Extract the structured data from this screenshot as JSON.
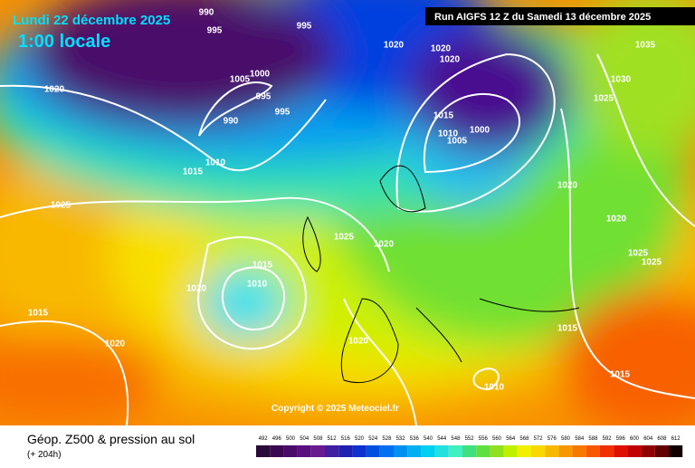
{
  "header": {
    "date": "Lundi 22 décembre 2025",
    "time": "1:00 locale",
    "run": "Run AIGFS 12 Z du Samedi 13 décembre 2025"
  },
  "copyright": "Copyright © 2025 Meteociel.fr",
  "footer": {
    "title": "Géop. Z500 & pression au sol",
    "lead": "(+ 204h)"
  },
  "isobar_labels": [
    990,
    995,
    995,
    1020,
    1005,
    1000,
    995,
    995,
    990,
    1010,
    1015,
    1020,
    1020,
    1020,
    1035,
    1030,
    1025,
    1015,
    1010,
    1005,
    1000,
    1025,
    1020,
    1025,
    1015,
    1010,
    1020,
    1015,
    1020,
    1020,
    1020,
    1020,
    1025,
    1025,
    1015,
    1015,
    1010
  ],
  "colorbar": [
    {
      "value": 492,
      "color": "#2a0a3a"
    },
    {
      "value": 496,
      "color": "#3a0850"
    },
    {
      "value": 500,
      "color": "#4a0a6a"
    },
    {
      "value": 504,
      "color": "#5a0f80"
    },
    {
      "value": 508,
      "color": "#6a1a90"
    },
    {
      "value": 512,
      "color": "#4020a0"
    },
    {
      "value": 516,
      "color": "#2020b0"
    },
    {
      "value": 520,
      "color": "#1030d0"
    },
    {
      "value": 524,
      "color": "#0050e0"
    },
    {
      "value": 528,
      "color": "#0070f0"
    },
    {
      "value": 532,
      "color": "#0090f0"
    },
    {
      "value": 536,
      "color": "#00b0f0"
    },
    {
      "value": 540,
      "color": "#00d0f0"
    },
    {
      "value": 544,
      "color": "#20e0e0"
    },
    {
      "value": 548,
      "color": "#40f0c0"
    },
    {
      "value": 552,
      "color": "#40e080"
    },
    {
      "value": 556,
      "color": "#60e040"
    },
    {
      "value": 560,
      "color": "#90e020"
    },
    {
      "value": 564,
      "color": "#c0f000"
    },
    {
      "value": 568,
      "color": "#f0f000"
    },
    {
      "value": 572,
      "color": "#f8d800"
    },
    {
      "value": 576,
      "color": "#f8b800"
    },
    {
      "value": 580,
      "color": "#f89800"
    },
    {
      "value": 584,
      "color": "#f87800"
    },
    {
      "value": 588,
      "color": "#f85800"
    },
    {
      "value": 592,
      "color": "#f03000"
    },
    {
      "value": 596,
      "color": "#e01000"
    },
    {
      "value": 600,
      "color": "#c00000"
    },
    {
      "value": 604,
      "color": "#900000"
    },
    {
      "value": 608,
      "color": "#600000"
    },
    {
      "value": 612,
      "color": "#100000"
    }
  ]
}
